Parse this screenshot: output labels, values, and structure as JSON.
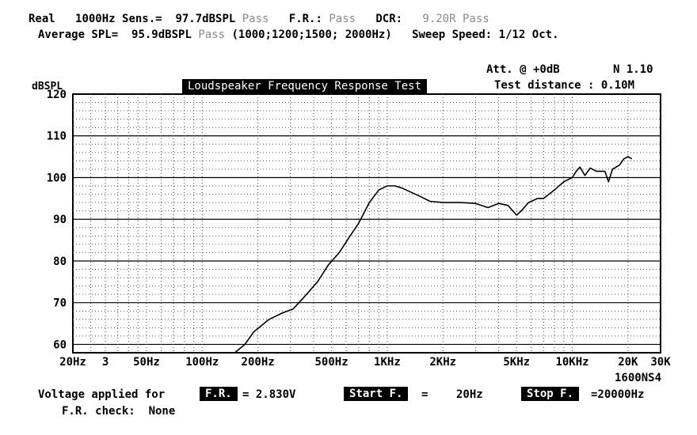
{
  "header": {
    "real_label": "Real",
    "freq_label": "1000Hz Sens.=",
    "sens_value": "97.7dBSPL",
    "sens_status": "Pass",
    "fr_label": "F.R.:",
    "fr_status": "Pass",
    "dcr_label": "DCR:",
    "dcr_value": "9.20R",
    "dcr_status": "Pass",
    "avg_label": "Average SPL=",
    "avg_value": "95.9dBSPL",
    "avg_status": "Pass",
    "avg_freqs": "(1000;1200;1500; 2000Hz)",
    "sweep": "Sweep Speed: 1/12 Oct.",
    "att": "Att. @  +0dB",
    "n": "N 1.10",
    "test_distance": "Test distance : 0.10M"
  },
  "chart_data": {
    "type": "line",
    "title": "Loudspeaker Frequency Response Test",
    "ylabel": "dBSPL",
    "xlabel": "",
    "x_scale": "log",
    "xlim": [
      20,
      30000
    ],
    "ylim": [
      58,
      120
    ],
    "y_ticks": [
      "120",
      "110",
      "100",
      "90",
      "80",
      "70",
      "60"
    ],
    "x_ticks": [
      {
        "f": 20,
        "label": "20Hz"
      },
      {
        "f": 30,
        "label": "3"
      },
      {
        "f": 50,
        "label": "50Hz"
      },
      {
        "f": 100,
        "label": "100Hz"
      },
      {
        "f": 200,
        "label": "200Hz"
      },
      {
        "f": 500,
        "label": "500Hz"
      },
      {
        "f": 1000,
        "label": "1KHz"
      },
      {
        "f": 2000,
        "label": "2KHz"
      },
      {
        "f": 5000,
        "label": "5KHz"
      },
      {
        "f": 10000,
        "label": "10KHz"
      },
      {
        "f": 20000,
        "label": "20K"
      },
      {
        "f": 30000,
        "label": "30K"
      }
    ],
    "grid": true,
    "series": [
      {
        "points": [
          [
            150,
            58
          ],
          [
            170,
            60
          ],
          [
            190,
            63
          ],
          [
            230,
            66
          ],
          [
            270,
            67.5
          ],
          [
            310,
            68.5
          ],
          [
            350,
            71
          ],
          [
            420,
            75
          ],
          [
            480,
            79
          ],
          [
            550,
            82
          ],
          [
            630,
            86
          ],
          [
            700,
            89
          ],
          [
            800,
            94
          ],
          [
            900,
            97
          ],
          [
            1000,
            98
          ],
          [
            1100,
            98
          ],
          [
            1200,
            97.5
          ],
          [
            1500,
            95.5
          ],
          [
            1700,
            94.3
          ],
          [
            2000,
            94
          ],
          [
            2500,
            94
          ],
          [
            3000,
            93.8
          ],
          [
            3500,
            92.8
          ],
          [
            4000,
            93.8
          ],
          [
            4500,
            93.3
          ],
          [
            5000,
            91
          ],
          [
            5300,
            92
          ],
          [
            5800,
            94
          ],
          [
            6500,
            95
          ],
          [
            7000,
            95
          ],
          [
            8000,
            97
          ],
          [
            9000,
            99
          ],
          [
            10000,
            100
          ],
          [
            10500,
            101.5
          ],
          [
            11000,
            102.5
          ],
          [
            11700,
            100.5
          ],
          [
            12500,
            102.3
          ],
          [
            13500,
            101.5
          ],
          [
            15000,
            101.5
          ],
          [
            15700,
            99
          ],
          [
            16500,
            102
          ],
          [
            18000,
            103
          ],
          [
            19000,
            104.5
          ],
          [
            20000,
            105
          ],
          [
            21000,
            104.5
          ]
        ]
      }
    ]
  },
  "chart_label": "1600NS4",
  "footer": {
    "voltage_label": "Voltage applied for",
    "fr_key": "F.R.",
    "voltage_value": "= 2.830V",
    "start_key": "Start F.",
    "start_eq": "=",
    "start_value": "20Hz",
    "stop_key": "Stop F.",
    "stop_value": "=20000Hz",
    "frcheck_label": "F.R. check:",
    "frcheck_value": "None"
  }
}
